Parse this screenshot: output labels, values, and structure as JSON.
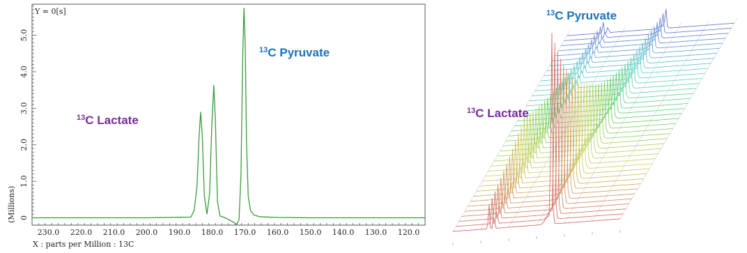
{
  "chart_data": [
    {
      "type": "line",
      "title": "",
      "corner_label": "Y = 0[s]",
      "xlabel": "X : parts per Million : 13C",
      "ylabel": "(Millions)",
      "xlim": [
        235.0,
        115.0
      ],
      "ylim": [
        -0.2,
        5.85
      ],
      "x_reversed": true,
      "x_ticks": [
        "230.0",
        "220.0",
        "210.0",
        "200.0",
        "190.0",
        "180.0",
        "170.0",
        "160.0",
        "150.0",
        "140.0",
        "130.0",
        "120.0"
      ],
      "x_tick_values": [
        230,
        220,
        210,
        200,
        190,
        180,
        170,
        160,
        150,
        140,
        130,
        120
      ],
      "y_ticks": [
        "0",
        "1.0",
        "2.0",
        "3.0",
        "4.0",
        "5.0"
      ],
      "y_tick_values": [
        0,
        1,
        2,
        3,
        4,
        5
      ],
      "series": [
        {
          "color": "#3a9a3a",
          "x": [
            235,
            200,
            186.5,
            185.5,
            184.6,
            184.0,
            183.5,
            183.0,
            182.4,
            181.6,
            180.8,
            180.1,
            179.5,
            179.0,
            178.4,
            177.6,
            176.0,
            173.5,
            172.5,
            171.8,
            171.2,
            170.7,
            170.3,
            169.9,
            169.5,
            169.0,
            168.3,
            167.3,
            165.5,
            160,
            150,
            115
          ],
          "y": [
            0.0,
            0.0,
            0.02,
            0.2,
            0.9,
            2.25,
            2.9,
            2.2,
            0.6,
            0.1,
            0.65,
            2.55,
            3.63,
            2.6,
            0.45,
            0.05,
            0.0,
            -0.12,
            -0.18,
            -0.05,
            1.2,
            4.3,
            5.75,
            4.7,
            2.0,
            0.6,
            0.2,
            0.08,
            0.03,
            0.01,
            0.0,
            0.0
          ]
        }
      ],
      "annotations": [
        {
          "sup": "13",
          "text": "C Pyruvate",
          "color": "#1a72b8"
        },
        {
          "sup": "13",
          "text": "C Lactate",
          "color": "#7a2a9a"
        }
      ]
    },
    {
      "type": "line",
      "subtype": "3d-waterfall",
      "annotations": [
        {
          "sup": "13",
          "text": "C Pyruvate",
          "color": "#1a72b8"
        },
        {
          "sup": "13",
          "text": "C Lactate",
          "color": "#7a2a9a"
        }
      ],
      "slice_count": 40
    }
  ]
}
